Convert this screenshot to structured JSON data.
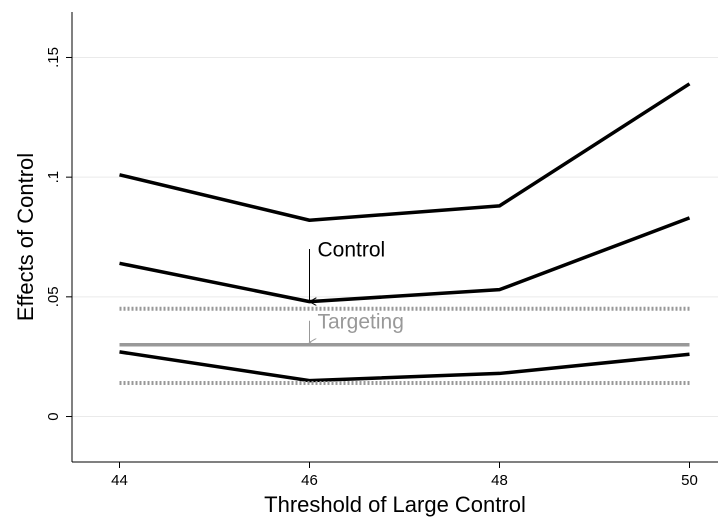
{
  "chart_data": {
    "type": "line",
    "x_label": "Threshold of Large Control",
    "y_label": "Effects of Control",
    "x": [
      44,
      46,
      48,
      50
    ],
    "series": [
      {
        "color": "#000000",
        "style": "solid",
        "values": [
          0.101,
          0.082,
          0.088,
          0.139
        ]
      },
      {
        "color": "#000000",
        "style": "solid",
        "values": [
          0.064,
          0.048,
          0.053,
          0.083
        ]
      },
      {
        "color": "#000000",
        "style": "solid",
        "values": [
          0.027,
          0.015,
          0.018,
          0.026
        ]
      },
      {
        "color": "#999999",
        "style": "dotted",
        "values": [
          0.045,
          0.045,
          0.045,
          0.045
        ]
      },
      {
        "color": "#999999",
        "style": "solid",
        "values": [
          0.03,
          0.03,
          0.03,
          0.03
        ]
      },
      {
        "color": "#999999",
        "style": "dotted",
        "values": [
          0.014,
          0.014,
          0.014,
          0.014
        ]
      }
    ],
    "annotations": [
      {
        "text": "Control",
        "x": 46,
        "y": 0.07,
        "y_end": 0.048,
        "color": "#000000"
      },
      {
        "text": "Targeting",
        "x": 46,
        "y": 0.04,
        "y_end": 0.031,
        "color": "#999999"
      }
    ],
    "xlim": [
      43.5,
      50.3
    ],
    "xticks": [
      44,
      46,
      48,
      50
    ],
    "ylim": [
      -0.019,
      0.169
    ],
    "yticks": [
      0,
      {
        "value": 0.05,
        "label": ".05"
      },
      {
        "value": 0.1,
        "label": ".1"
      },
      {
        "value": 0.15,
        "label": ".15"
      }
    ],
    "grid": true
  }
}
